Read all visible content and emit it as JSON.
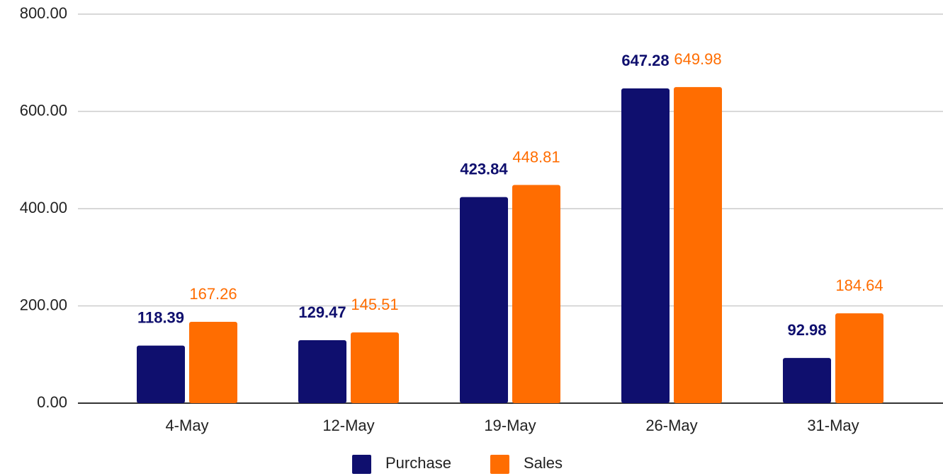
{
  "chart_data": {
    "type": "bar",
    "categories": [
      "4-May",
      "12-May",
      "19-May",
      "26-May",
      "31-May"
    ],
    "series": [
      {
        "name": "Purchase",
        "color": "#0f0f6e",
        "values": [
          118.39,
          129.47,
          423.84,
          647.28,
          92.98
        ]
      },
      {
        "name": "Sales",
        "color": "#ff6d01",
        "values": [
          167.26,
          145.51,
          448.81,
          649.98,
          184.64
        ]
      }
    ],
    "ylim": [
      0,
      800
    ],
    "yticks": [
      {
        "value": 0,
        "label": "0.00"
      },
      {
        "value": 200,
        "label": "200.00"
      },
      {
        "value": 400,
        "label": "400.00"
      },
      {
        "value": 600,
        "label": "600.00"
      },
      {
        "value": 800,
        "label": "800.00"
      }
    ],
    "grid": true,
    "legend": "bottom"
  }
}
